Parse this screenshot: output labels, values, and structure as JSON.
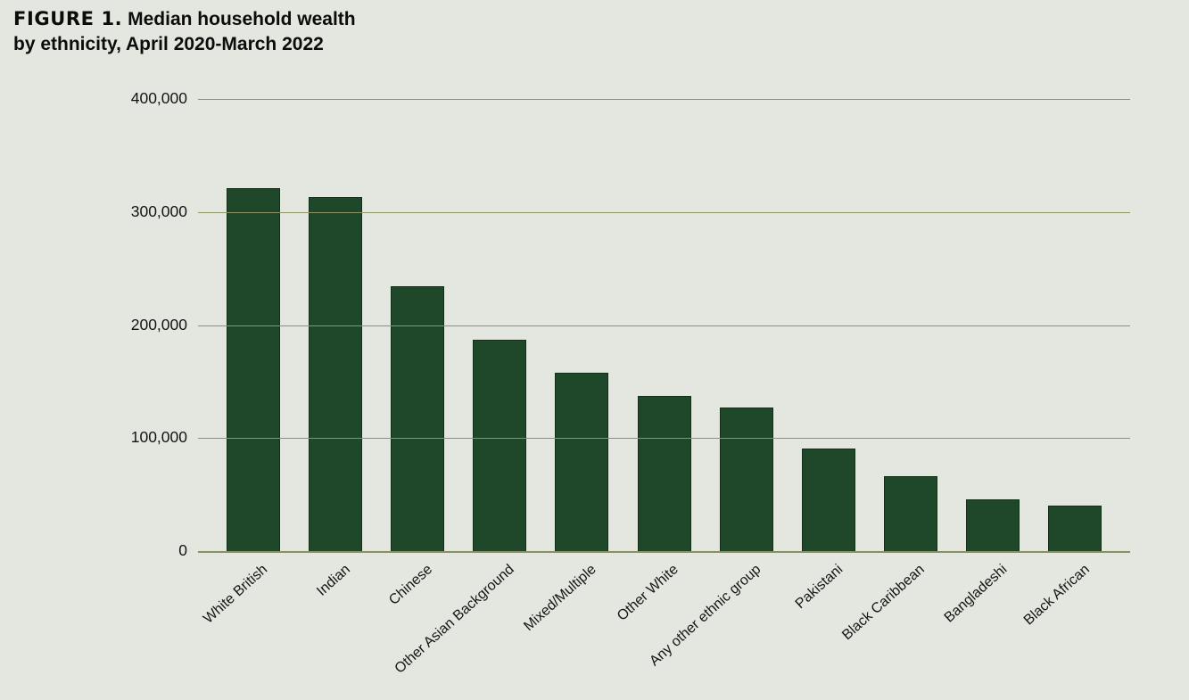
{
  "figure": {
    "label": "FIGURE 1.",
    "title_line1_rest": "Median household wealth",
    "title_line2": "by ethnicity, April 2020-March 2022"
  },
  "colors": {
    "background": "#e4e7df",
    "bar_fill": "#1f4729",
    "bar_border": "#123015",
    "gridline": "#8d9468",
    "text": "#141414"
  },
  "chart_data": {
    "type": "bar",
    "title": "FIGURE 1. Median household wealth by ethnicity, April 2020-March 2022",
    "categories": [
      "White British",
      "Indian",
      "Chinese",
      "Other Asian Background",
      "Mixed/Multiple",
      "Other White",
      "Any other ethnic group",
      "Pakistani",
      "Black Caribbean",
      "Bangladeshi",
      "Black African"
    ],
    "values": [
      321000,
      313000,
      234000,
      187000,
      158000,
      137000,
      127000,
      91000,
      66000,
      46000,
      40000
    ],
    "xlabel": "",
    "ylabel": "",
    "ylim": [
      0,
      400000
    ],
    "grid": true,
    "legend": false,
    "yticks": [
      {
        "value": 400000,
        "label": "400,000"
      },
      {
        "value": 300000,
        "label": "300,000"
      },
      {
        "value": 200000,
        "label": "200,000"
      },
      {
        "value": 100000,
        "label": "100,000"
      },
      {
        "value": 0,
        "label": "0"
      }
    ]
  }
}
